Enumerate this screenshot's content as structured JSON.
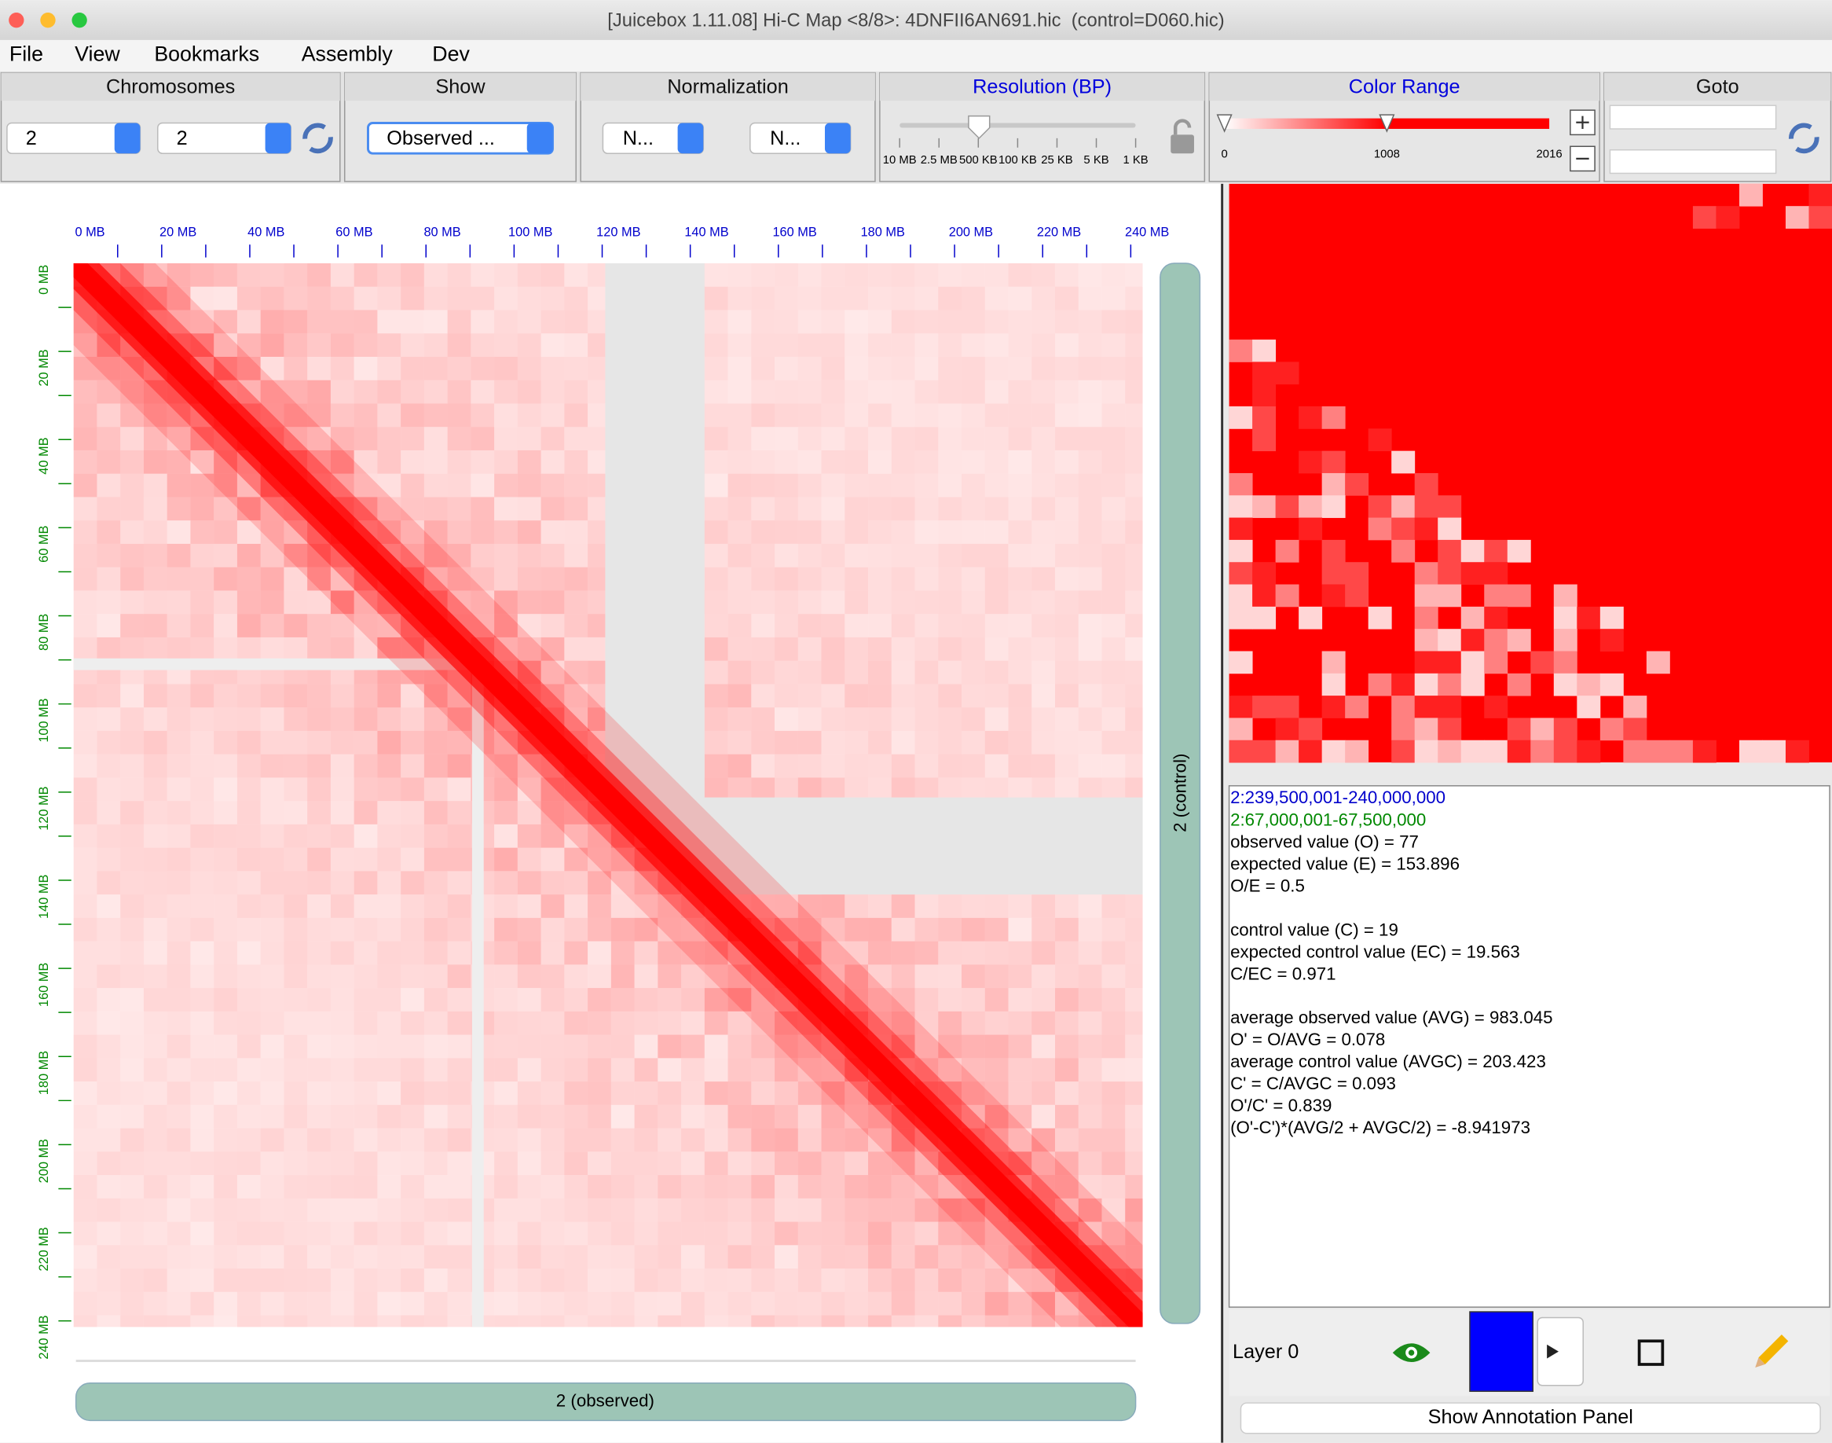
{
  "window": {
    "title": "[Juicebox 1.11.08] Hi-C Map <8/8>: 4DNFII6AN691.hic  (control=D060.hic)"
  },
  "menu": [
    "File",
    "View",
    "Bookmarks",
    "Assembly",
    "Dev"
  ],
  "toolbar": {
    "chromosomes": {
      "label": "Chromosomes",
      "x": "2",
      "y": "2"
    },
    "show": {
      "label": "Show",
      "value": "Observed ..."
    },
    "normalization": {
      "label": "Normalization",
      "values": [
        "N...",
        "N..."
      ]
    },
    "resolution": {
      "label": "Resolution (BP)",
      "ticks": [
        "10 MB",
        "2.5 MB",
        "500 KB",
        "100 KB",
        "25 KB",
        "5 KB",
        "1 KB"
      ]
    },
    "color_range": {
      "label": "Color Range",
      "min": 0,
      "mid": 1008,
      "max": 2016
    },
    "goto": {
      "label": "Goto"
    }
  },
  "heatmap": {
    "x_labels": [
      "0 MB",
      "20 MB",
      "40 MB",
      "60 MB",
      "80 MB",
      "100 MB",
      "120 MB",
      "140 MB",
      "160 MB",
      "180 MB",
      "200 MB",
      "220 MB",
      "240 MB"
    ],
    "y_labels": [
      "0 MB",
      "20 MB",
      "40 MB",
      "60 MB",
      "80 MB",
      "100 MB",
      "120 MB",
      "140 MB",
      "160 MB",
      "180 MB",
      "200 MB",
      "220 MB",
      "240 MB"
    ],
    "y_track_label": "2 (control)",
    "x_track_label": "2 (observed)"
  },
  "info": {
    "locus_x": "2:239,500,001-240,000,000",
    "locus_y": "2:67,000,001-67,500,000",
    "groups": [
      [
        "observed value (O) = 77",
        "expected value (E) = 153.896",
        "O/E = 0.5"
      ],
      [
        "control value (C) = 19",
        "expected control value (EC) = 19.563",
        "C/EC = 0.971"
      ],
      [
        "average observed value (AVG) = 983.045",
        "O' = O/AVG = 0.078",
        "average control value (AVGC) = 203.423",
        "C' = C/AVGC = 0.093",
        "O'/C' = 0.839",
        "(O'-C')*(AVG/2 + AVGC/2) = -8.941973"
      ]
    ]
  },
  "layer": {
    "name": "Layer 0",
    "button": "Show Annotation Panel"
  }
}
